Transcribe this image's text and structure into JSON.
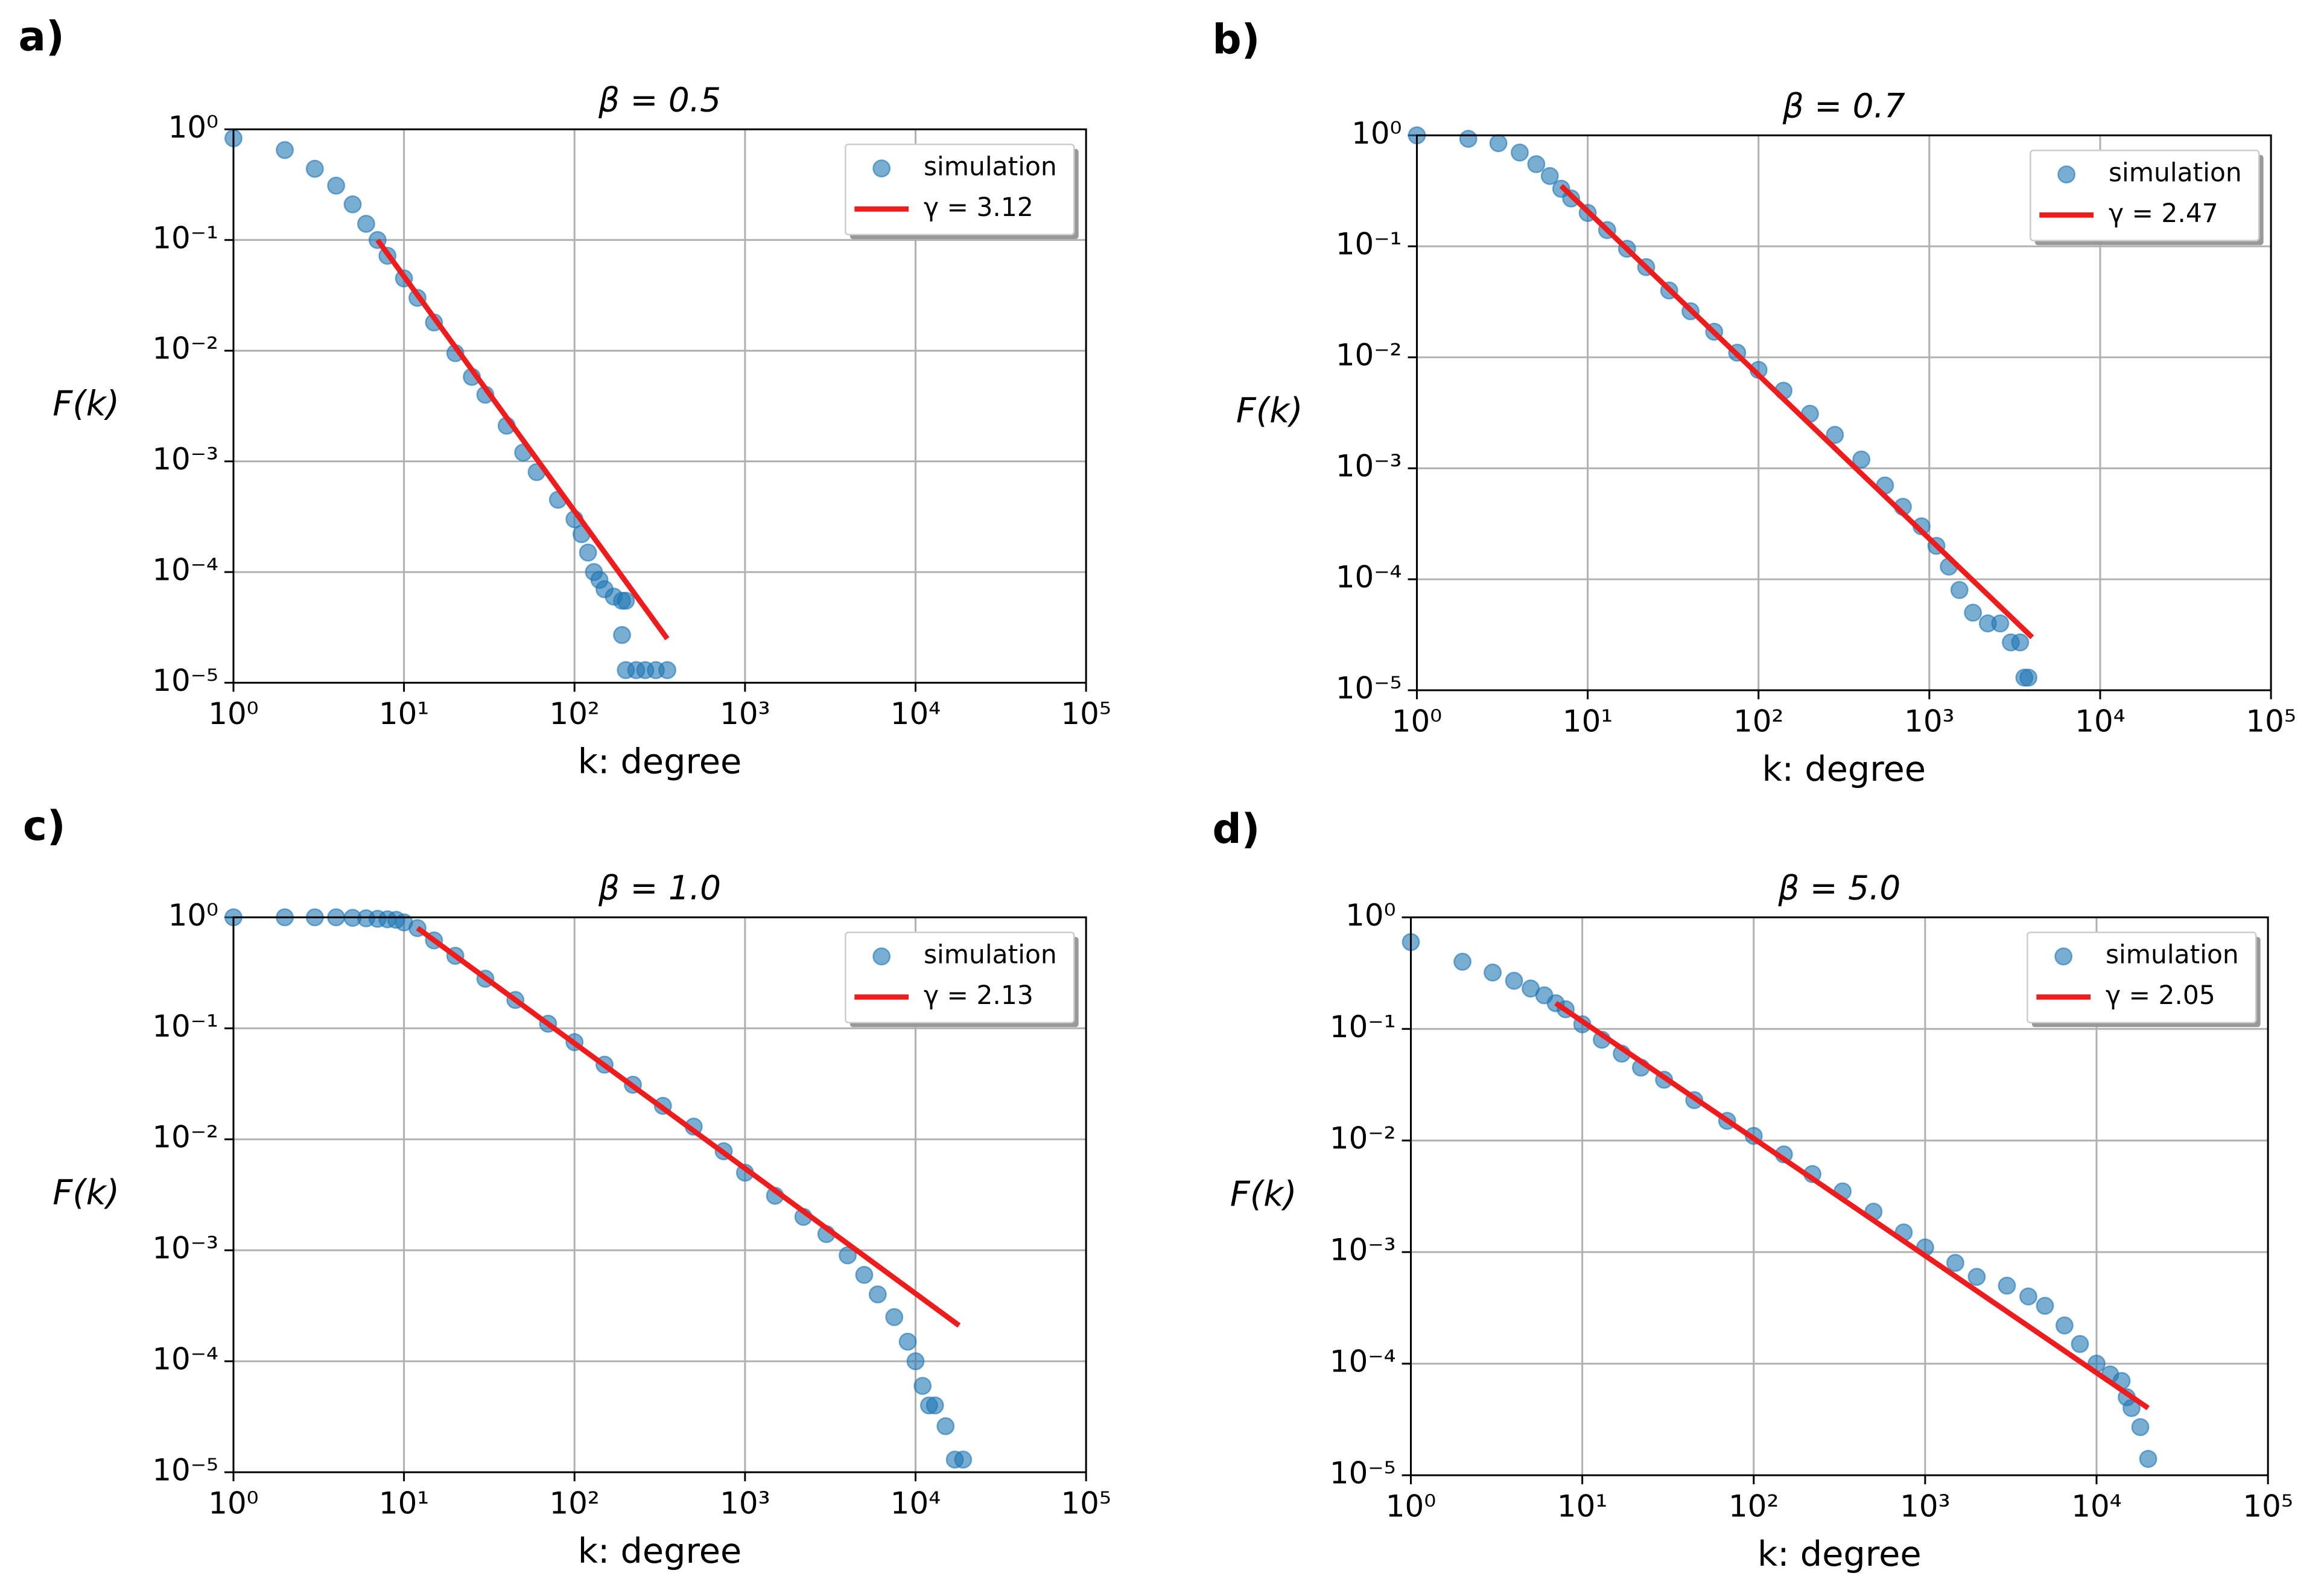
{
  "chart_data": [
    {
      "type": "scatter",
      "panel_label": "a)",
      "title": "β = 0.5",
      "xlabel": "k: degree",
      "ylabel": "F(k)",
      "xscale": "log",
      "yscale": "log",
      "grid": true,
      "legend": "upper right",
      "xlim": [
        1,
        100000
      ],
      "ylim": [
        1e-05,
        1
      ],
      "xticks": [
        {
          "value": 1,
          "label": "10⁰"
        },
        {
          "value": 10,
          "label": "10¹"
        },
        {
          "value": 100,
          "label": "10²"
        },
        {
          "value": 1000,
          "label": "10³"
        },
        {
          "value": 10000,
          "label": "10⁴"
        },
        {
          "value": 100000,
          "label": "10⁵"
        }
      ],
      "yticks": [
        {
          "value": 1e-05,
          "label": "10⁻⁵"
        },
        {
          "value": 0.0001,
          "label": "10⁻⁴"
        },
        {
          "value": 0.001,
          "label": "10⁻³"
        },
        {
          "value": 0.01,
          "label": "10⁻²"
        },
        {
          "value": 0.1,
          "label": "10⁻¹"
        },
        {
          "value": 1,
          "label": "10⁰"
        }
      ],
      "series": [
        {
          "name": "simulation",
          "type": "scatter",
          "color": "#1f77b4",
          "x": [
            1,
            2,
            3,
            4,
            5,
            6,
            7,
            8,
            10,
            12,
            15,
            20,
            25,
            30,
            40,
            50,
            60,
            80,
            100,
            110,
            120,
            130,
            140,
            150,
            170,
            190,
            200,
            190,
            200,
            230,
            260,
            300,
            350
          ],
          "values": [
            0.83,
            0.65,
            0.44,
            0.31,
            0.21,
            0.14,
            0.1,
            0.072,
            0.045,
            0.03,
            0.018,
            0.0095,
            0.0058,
            0.004,
            0.0021,
            0.0012,
            0.0008,
            0.00045,
            0.0003,
            0.00022,
            0.00015,
            0.0001,
            8.5e-05,
            7e-05,
            6e-05,
            5.5e-05,
            5.5e-05,
            2.7e-05,
            1.3e-05,
            1.3e-05,
            1.3e-05,
            1.3e-05,
            1.3e-05
          ]
        },
        {
          "name": "γ = 3.12",
          "type": "line",
          "color": "#ee1c1c",
          "x": [
            7,
            350
          ],
          "values": [
            0.1,
            2.5e-05
          ]
        }
      ]
    },
    {
      "type": "scatter",
      "panel_label": "b)",
      "title": "β = 0.7",
      "xlabel": "k: degree",
      "ylabel": "F(k)",
      "xscale": "log",
      "yscale": "log",
      "grid": true,
      "legend": "upper right",
      "xlim": [
        1,
        100000
      ],
      "ylim": [
        1e-05,
        1
      ],
      "xticks": [
        {
          "value": 1,
          "label": "10⁰"
        },
        {
          "value": 10,
          "label": "10¹"
        },
        {
          "value": 100,
          "label": "10²"
        },
        {
          "value": 1000,
          "label": "10³"
        },
        {
          "value": 10000,
          "label": "10⁴"
        },
        {
          "value": 100000,
          "label": "10⁵"
        }
      ],
      "yticks": [
        {
          "value": 1e-05,
          "label": "10⁻⁵"
        },
        {
          "value": 0.0001,
          "label": "10⁻⁴"
        },
        {
          "value": 0.001,
          "label": "10⁻³"
        },
        {
          "value": 0.01,
          "label": "10⁻²"
        },
        {
          "value": 0.1,
          "label": "10⁻¹"
        },
        {
          "value": 1,
          "label": "10⁰"
        }
      ],
      "series": [
        {
          "name": "simulation",
          "type": "scatter",
          "color": "#1f77b4",
          "x": [
            1,
            2,
            3,
            4,
            5,
            6,
            7,
            8,
            10,
            13,
            17,
            22,
            30,
            40,
            55,
            75,
            100,
            140,
            200,
            280,
            400,
            550,
            700,
            900,
            1100,
            1300,
            1500,
            1800,
            2200,
            2600,
            3000,
            3400,
            3600,
            3800
          ],
          "values": [
            1.0,
            0.93,
            0.85,
            0.7,
            0.55,
            0.43,
            0.33,
            0.27,
            0.2,
            0.14,
            0.095,
            0.065,
            0.04,
            0.026,
            0.017,
            0.011,
            0.0077,
            0.005,
            0.0031,
            0.002,
            0.0012,
            0.0007,
            0.00045,
            0.0003,
            0.0002,
            0.00013,
            8e-05,
            5e-05,
            4e-05,
            4e-05,
            2.7e-05,
            2.7e-05,
            1.3e-05,
            1.3e-05
          ]
        },
        {
          "name": "γ = 2.47",
          "type": "line",
          "color": "#ee1c1c",
          "x": [
            7,
            4000
          ],
          "values": [
            0.35,
            3e-05
          ]
        }
      ]
    },
    {
      "type": "scatter",
      "panel_label": "c)",
      "title": "β = 1.0",
      "xlabel": "k: degree",
      "ylabel": "F(k)",
      "xscale": "log",
      "yscale": "log",
      "grid": true,
      "legend": "upper right",
      "xlim": [
        1,
        100000
      ],
      "ylim": [
        1e-05,
        1
      ],
      "xticks": [
        {
          "value": 1,
          "label": "10⁰"
        },
        {
          "value": 10,
          "label": "10¹"
        },
        {
          "value": 100,
          "label": "10²"
        },
        {
          "value": 1000,
          "label": "10³"
        },
        {
          "value": 10000,
          "label": "10⁴"
        },
        {
          "value": 100000,
          "label": "10⁵"
        }
      ],
      "yticks": [
        {
          "value": 1e-05,
          "label": "10⁻⁵"
        },
        {
          "value": 0.0001,
          "label": "10⁻⁴"
        },
        {
          "value": 0.001,
          "label": "10⁻³"
        },
        {
          "value": 0.01,
          "label": "10⁻²"
        },
        {
          "value": 0.1,
          "label": "10⁻¹"
        },
        {
          "value": 1,
          "label": "10⁰"
        }
      ],
      "series": [
        {
          "name": "simulation",
          "type": "scatter",
          "color": "#1f77b4",
          "x": [
            1,
            2,
            3,
            4,
            5,
            6,
            7,
            8,
            9,
            10,
            12,
            15,
            20,
            30,
            45,
            70,
            100,
            150,
            220,
            330,
            500,
            750,
            1000,
            1500,
            2200,
            3000,
            4000,
            5000,
            6000,
            7500,
            9000,
            10000,
            11000,
            12000,
            13000,
            15000,
            17000,
            19000
          ],
          "values": [
            1,
            1,
            1,
            1,
            0.99,
            0.98,
            0.97,
            0.96,
            0.95,
            0.9,
            0.8,
            0.62,
            0.45,
            0.28,
            0.18,
            0.11,
            0.075,
            0.047,
            0.031,
            0.02,
            0.013,
            0.0078,
            0.005,
            0.0031,
            0.002,
            0.0014,
            0.0009,
            0.0006,
            0.0004,
            0.00025,
            0.00015,
            0.0001,
            6e-05,
            4e-05,
            4e-05,
            2.6e-05,
            1.3e-05,
            1.3e-05
          ]
        },
        {
          "name": "γ = 2.13",
          "type": "line",
          "color": "#ee1c1c",
          "x": [
            12,
            18000
          ],
          "values": [
            0.8,
            0.00021
          ]
        }
      ]
    },
    {
      "type": "scatter",
      "panel_label": "d)",
      "title": "β = 5.0",
      "xlabel": "k: degree",
      "ylabel": "F(k)",
      "xscale": "log",
      "yscale": "log",
      "grid": true,
      "legend": "upper right",
      "xlim": [
        1,
        100000
      ],
      "ylim": [
        1e-05,
        1
      ],
      "xticks": [
        {
          "value": 1,
          "label": "10⁰"
        },
        {
          "value": 10,
          "label": "10¹"
        },
        {
          "value": 100,
          "label": "10²"
        },
        {
          "value": 1000,
          "label": "10³"
        },
        {
          "value": 10000,
          "label": "10⁴"
        },
        {
          "value": 100000,
          "label": "10⁵"
        }
      ],
      "yticks": [
        {
          "value": 1e-05,
          "label": "10⁻⁵"
        },
        {
          "value": 0.0001,
          "label": "10⁻⁴"
        },
        {
          "value": 0.001,
          "label": "10⁻³"
        },
        {
          "value": 0.01,
          "label": "10⁻²"
        },
        {
          "value": 0.1,
          "label": "10⁻¹"
        },
        {
          "value": 1,
          "label": "10⁰"
        }
      ],
      "series": [
        {
          "name": "simulation",
          "type": "scatter",
          "color": "#1f77b4",
          "x": [
            1,
            2,
            3,
            4,
            5,
            6,
            7,
            8,
            10,
            13,
            17,
            22,
            30,
            45,
            70,
            100,
            150,
            220,
            330,
            500,
            750,
            1000,
            1500,
            2000,
            3000,
            4000,
            5000,
            6500,
            8000,
            10000,
            12000,
            14000,
            15000,
            16000,
            18000,
            20000
          ],
          "values": [
            0.6,
            0.4,
            0.32,
            0.27,
            0.23,
            0.2,
            0.17,
            0.15,
            0.11,
            0.08,
            0.06,
            0.045,
            0.035,
            0.023,
            0.015,
            0.011,
            0.0075,
            0.005,
            0.0035,
            0.0023,
            0.0015,
            0.0011,
            0.0008,
            0.0006,
            0.0005,
            0.0004,
            0.00033,
            0.00022,
            0.00015,
            0.0001,
            8e-05,
            7e-05,
            5e-05,
            4e-05,
            2.7e-05,
            1.4e-05
          ]
        },
        {
          "name": "γ = 2.05",
          "type": "line",
          "color": "#ee1c1c",
          "x": [
            7,
            20000
          ],
          "values": [
            0.17,
            4e-05
          ]
        }
      ]
    }
  ]
}
